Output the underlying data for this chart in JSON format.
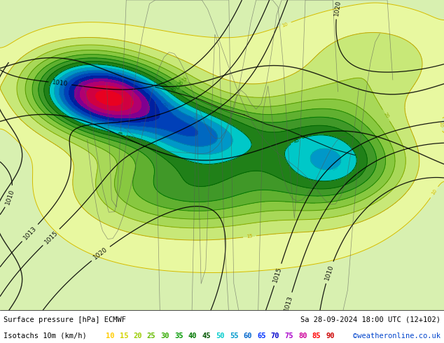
{
  "title_line1": "Surface pressure [hPa] ECMWF",
  "title_line1_right": "Sa 28-09-2024 18:00 UTC (12+102)",
  "title_line2_left": "Isotachs 10m (km/h)",
  "legend_values": [
    10,
    15,
    20,
    25,
    30,
    35,
    40,
    45,
    50,
    55,
    60,
    65,
    70,
    75,
    80,
    85,
    90
  ],
  "legend_colors": [
    "#ffcc00",
    "#d4d400",
    "#99cc00",
    "#66bb00",
    "#33aa00",
    "#009900",
    "#007700",
    "#005500",
    "#00cccc",
    "#0099cc",
    "#0066cc",
    "#0033ff",
    "#0000cc",
    "#aa00cc",
    "#cc0099",
    "#ff0000",
    "#cc0000"
  ],
  "copyright": "©weatheronline.co.uk",
  "copyright_color": "#0044cc",
  "bg_color": "#b8e68c",
  "map_bg": "#b8e68c",
  "bottom_bar_color": "#ffffff",
  "bottom_text_color": "#000000",
  "figsize": [
    6.34,
    4.9
  ],
  "dpi": 100,
  "map_dominant_color": "#b8e688",
  "wind_low_color": "#d8f0a0",
  "wind_low2_color": "#e8f8b0",
  "wind_mid_color": "#c8e890",
  "pressure_high_color": "#c8e8a0"
}
